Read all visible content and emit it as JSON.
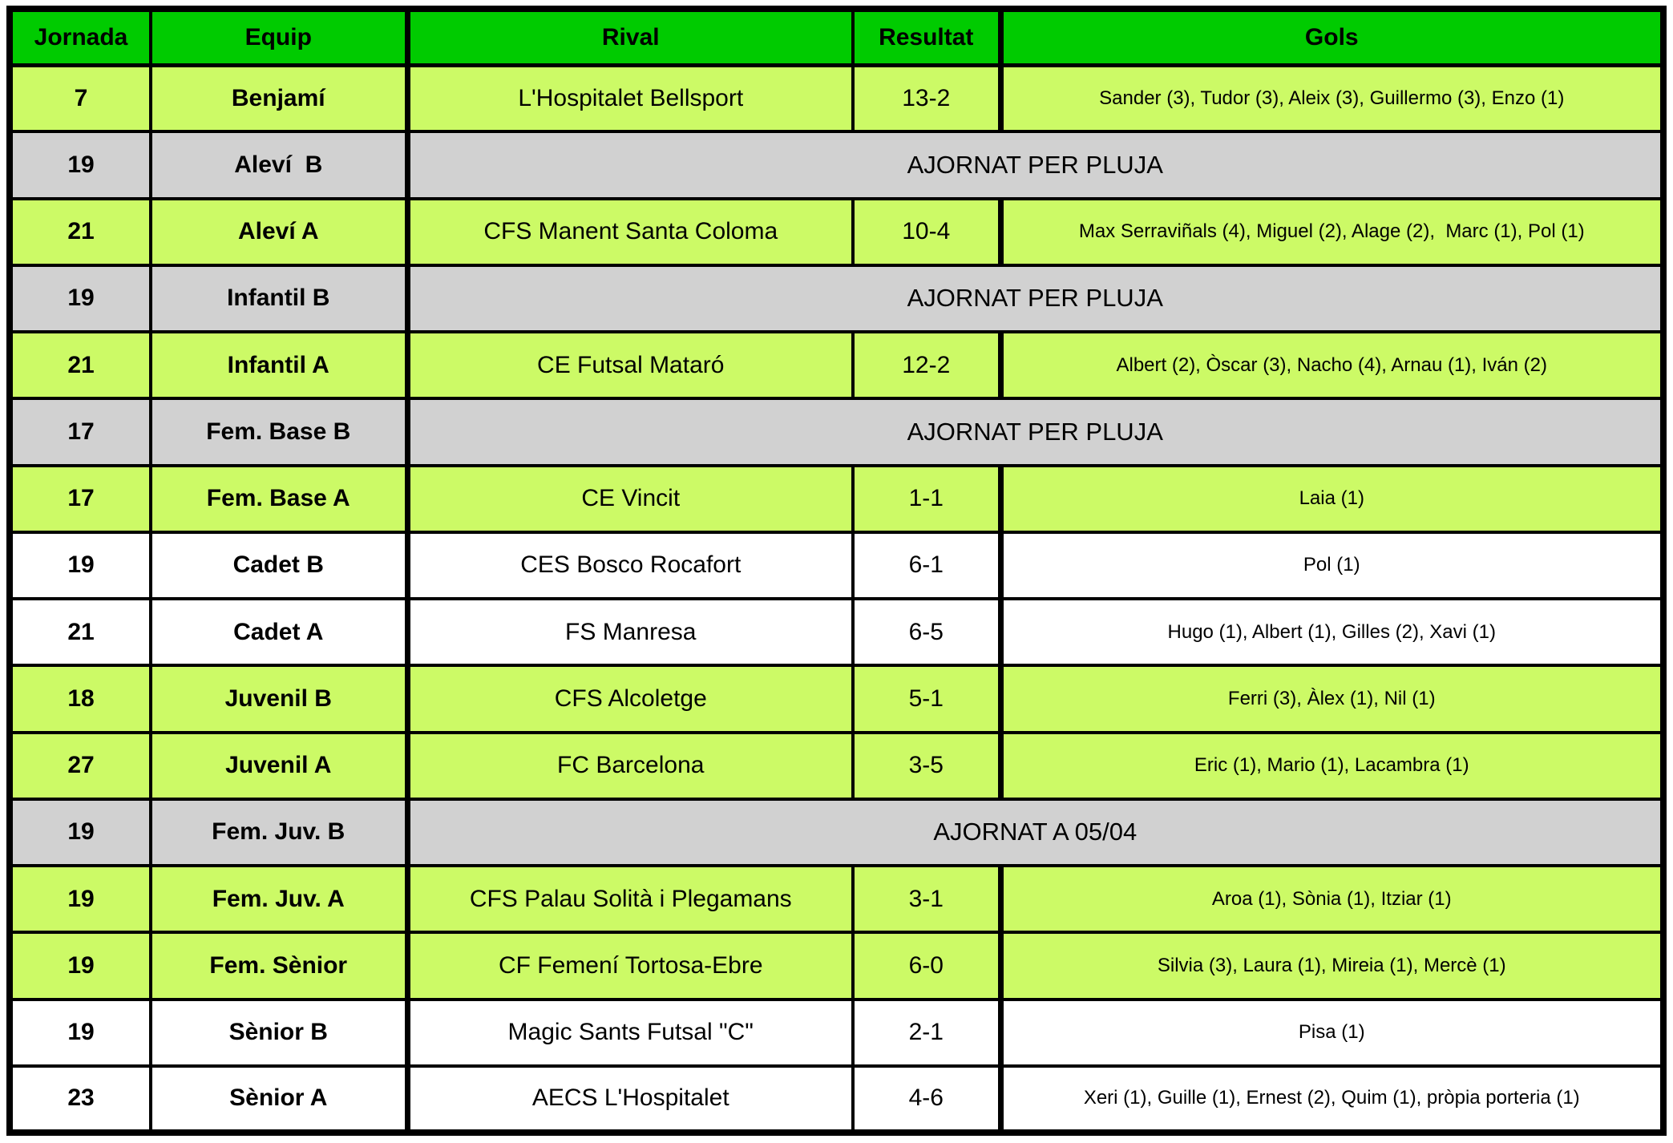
{
  "table": {
    "title_semantic": "futsal-weekend-results",
    "columns": [
      "Jornada",
      "Equip",
      "Rival",
      "Resultat",
      "Gols"
    ],
    "colors": {
      "header_green": "#00CB00",
      "row_green": "#CCFA66",
      "row_gray": "#D1D1D1",
      "row_white": "#FFFFFF",
      "border_black": "#000000"
    },
    "rows": [
      {
        "jornada": "7",
        "equip": "Benjamí",
        "rival": "L'Hospitalet Bellsport",
        "resultat": "13-2",
        "gols": "Sander (3), Tudor (3), Aleix (3), Guillermo (3), Enzo (1)",
        "highlight": "green"
      },
      {
        "jornada": "19",
        "equip": "Aleví  B",
        "note": "AJORNAT PER PLUJA",
        "highlight": "gray"
      },
      {
        "jornada": "21",
        "equip": "Aleví A",
        "rival": "CFS Manent Santa Coloma",
        "resultat": "10-4",
        "gols": "Max Serraviñals (4), Miguel (2), Alage (2),  Marc (1), Pol (1)",
        "highlight": "green"
      },
      {
        "jornada": "19",
        "equip": "Infantil B",
        "note": "AJORNAT PER PLUJA",
        "highlight": "gray"
      },
      {
        "jornada": "21",
        "equip": "Infantil A",
        "rival": "CE Futsal Mataró",
        "resultat": "12-2",
        "gols": "Albert (2), Òscar (3), Nacho (4), Arnau (1), Iván (2)",
        "highlight": "green"
      },
      {
        "jornada": "17",
        "equip": "Fem. Base B",
        "note": "AJORNAT PER PLUJA",
        "highlight": "gray"
      },
      {
        "jornada": "17",
        "equip": "Fem. Base A",
        "rival": "CE Vincit",
        "resultat": "1-1",
        "gols": "Laia (1)",
        "highlight": "green"
      },
      {
        "jornada": "19",
        "equip": "Cadet B",
        "rival": "CES Bosco Rocafort",
        "resultat": "6-1",
        "gols": "Pol (1)",
        "highlight": "white"
      },
      {
        "jornada": "21",
        "equip": "Cadet A",
        "rival": "FS Manresa",
        "resultat": "6-5",
        "gols": "Hugo (1), Albert (1), Gilles (2), Xavi (1)",
        "highlight": "white"
      },
      {
        "jornada": "18",
        "equip": "Juvenil B",
        "rival": "CFS Alcoletge",
        "resultat": "5-1",
        "gols": "Ferri (3), Àlex (1), Nil (1)",
        "highlight": "green"
      },
      {
        "jornada": "27",
        "equip": "Juvenil A",
        "rival": "FC Barcelona",
        "resultat": "3-5",
        "gols": "Eric (1), Mario (1), Lacambra (1)",
        "highlight": "green"
      },
      {
        "jornada": "19",
        "equip": "Fem. Juv. B",
        "note": "AJORNAT A 05/04",
        "highlight": "gray"
      },
      {
        "jornada": "19",
        "equip": "Fem. Juv. A",
        "rival": "CFS Palau Solità i Plegamans",
        "resultat": "3-1",
        "gols": "Aroa (1), Sònia (1), Itziar (1)",
        "highlight": "green"
      },
      {
        "jornada": "19",
        "equip": "Fem. Sènior",
        "rival": "CF Femení Tortosa-Ebre",
        "resultat": "6-0",
        "gols": "Silvia (3), Laura (1), Mireia (1), Mercè (1)",
        "highlight": "green"
      },
      {
        "jornada": "19",
        "equip": "Sènior B",
        "rival": "Magic Sants Futsal \"C\"",
        "resultat": "2-1",
        "gols": "Pisa (1)",
        "highlight": "white"
      },
      {
        "jornada": "23",
        "equip": "Sènior A",
        "rival": "AECS L'Hospitalet",
        "resultat": "4-6",
        "gols": "Xeri (1), Guille (1), Ernest (2), Quim (1), pròpia porteria (1)",
        "highlight": "white"
      }
    ]
  }
}
